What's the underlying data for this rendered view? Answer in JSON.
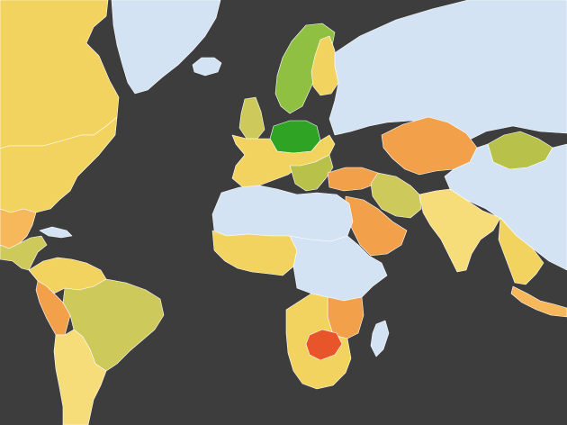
{
  "map": {
    "projection": "mercator",
    "background": "#3d3d3d",
    "palette": {
      "no_data": "#d3e3f3",
      "pale_yellow": "#f7dc7a",
      "yellow": "#f3d35f",
      "olive": "#cdc95a",
      "yellow_green": "#b8c24a",
      "light_green": "#8fc041",
      "green": "#2ea324",
      "orange_light": "#f6b85a",
      "orange": "#f2a14a",
      "red_orange": "#e9552a"
    },
    "regions": [
      {
        "name": "north-america-north",
        "fill": "#f3d35f"
      },
      {
        "name": "greenland",
        "fill": "#d3e3f3"
      },
      {
        "name": "iceland",
        "fill": "#d3e3f3"
      },
      {
        "name": "russia",
        "fill": "#d3e3f3"
      },
      {
        "name": "usa",
        "fill": "#f3d35f"
      },
      {
        "name": "mexico",
        "fill": "#f6b85a"
      },
      {
        "name": "central-america",
        "fill": "#cdc95a"
      },
      {
        "name": "cuba",
        "fill": "#d3e3f3"
      },
      {
        "name": "south-america-north",
        "fill": "#f3d35f"
      },
      {
        "name": "brazil",
        "fill": "#cdc95a"
      },
      {
        "name": "peru",
        "fill": "#f2a14a"
      },
      {
        "name": "south-america-south",
        "fill": "#f7dc7a"
      },
      {
        "name": "scandinavia",
        "fill": "#8fc041"
      },
      {
        "name": "finland",
        "fill": "#f3d35f"
      },
      {
        "name": "uk",
        "fill": "#cdc95a"
      },
      {
        "name": "poland",
        "fill": "#2ea324"
      },
      {
        "name": "western-europe",
        "fill": "#f3d35f"
      },
      {
        "name": "balkans",
        "fill": "#b8c24a"
      },
      {
        "name": "turkey",
        "fill": "#f2a14a"
      },
      {
        "name": "kazakhstan",
        "fill": "#f2a14a"
      },
      {
        "name": "mongolia",
        "fill": "#b8c24a"
      },
      {
        "name": "north-africa",
        "fill": "#d3e3f3"
      },
      {
        "name": "west-africa",
        "fill": "#f3d35f"
      },
      {
        "name": "central-africa",
        "fill": "#d3e3f3"
      },
      {
        "name": "east-africa",
        "fill": "#f2a14a"
      },
      {
        "name": "southern-africa",
        "fill": "#f3d35f"
      },
      {
        "name": "zimbabwe",
        "fill": "#e9552a"
      },
      {
        "name": "madagascar",
        "fill": "#d3e3f3"
      },
      {
        "name": "arabia",
        "fill": "#f2a14a"
      },
      {
        "name": "iran",
        "fill": "#cdc95a"
      },
      {
        "name": "india",
        "fill": "#f7dc7a"
      },
      {
        "name": "southeast-asia",
        "fill": "#f3d35f"
      },
      {
        "name": "indonesia",
        "fill": "#f6b85a"
      },
      {
        "name": "china",
        "fill": "#d3e3f3"
      }
    ]
  }
}
